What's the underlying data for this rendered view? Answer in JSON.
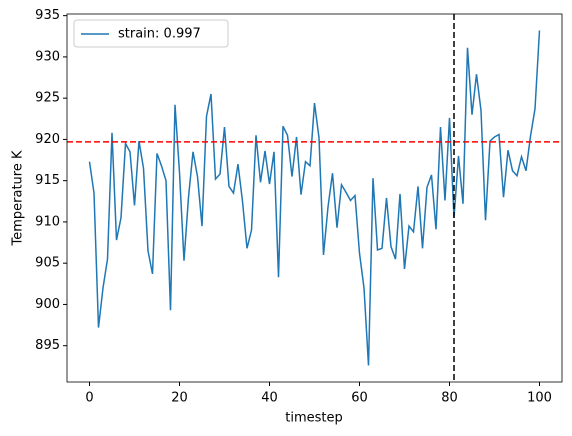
{
  "chart_data": {
    "type": "line",
    "xlabel": "timestep",
    "ylabel": "Temperature K",
    "x": [
      0,
      1,
      2,
      3,
      4,
      5,
      6,
      7,
      8,
      9,
      10,
      11,
      12,
      13,
      14,
      15,
      16,
      17,
      18,
      19,
      20,
      21,
      22,
      23,
      24,
      25,
      26,
      27,
      28,
      29,
      30,
      31,
      32,
      33,
      34,
      35,
      36,
      37,
      38,
      39,
      40,
      41,
      42,
      43,
      44,
      45,
      46,
      47,
      48,
      49,
      50,
      51,
      52,
      53,
      54,
      55,
      56,
      57,
      58,
      59,
      60,
      61,
      62,
      63,
      64,
      65,
      66,
      67,
      68,
      69,
      70,
      71,
      72,
      73,
      74,
      75,
      76,
      77,
      78,
      79,
      80,
      81,
      82,
      83,
      84,
      85,
      86,
      87,
      88,
      89,
      90,
      91,
      92,
      93,
      94,
      95,
      96,
      97,
      98,
      99,
      100
    ],
    "series": [
      {
        "name": "strain: 0.997",
        "color": "#1f77b4",
        "values": [
          917.3,
          913.5,
          897.2,
          902,
          905.5,
          920.8,
          907.8,
          910.5,
          919.5,
          918.5,
          912,
          919.8,
          916.5,
          906.5,
          903.7,
          918.3,
          916.8,
          915,
          899.3,
          924.2,
          916,
          905.3,
          913,
          918.5,
          915.5,
          909.5,
          922.8,
          925.5,
          915.2,
          915.8,
          921.5,
          914.3,
          913.5,
          917,
          912.5,
          906.8,
          909,
          920.5,
          914.8,
          918.6,
          914.6,
          918.5,
          903.3,
          921.6,
          920.5,
          915.5,
          920.3,
          913.3,
          917.3,
          916.8,
          924.4,
          920.2,
          906,
          911.8,
          915.9,
          909.3,
          914.5,
          913.6,
          912.6,
          913.2,
          906.2,
          902,
          892.6,
          915.3,
          906.6,
          906.8,
          912.9,
          907,
          905.5,
          913.4,
          904.3,
          909.5,
          908.8,
          914.3,
          906.8,
          914.2,
          915.7,
          909.1,
          921.5,
          912.6,
          922.6,
          910.5,
          918,
          912.2,
          931.1,
          923,
          927.9,
          923.5,
          910.2,
          919.8,
          920.3,
          920.6,
          913,
          918.7,
          916.2,
          915.6,
          917.9,
          916.2,
          920.4,
          923.7,
          933.2
        ]
      }
    ],
    "hline": {
      "value": 919.7,
      "color": "#ff0000"
    },
    "vline": {
      "value": 81,
      "color": "#000000"
    },
    "xlim": [
      -5,
      105
    ],
    "xticks": [
      0,
      20,
      40,
      60,
      80,
      100
    ],
    "ylim": [
      890.6,
      935.2
    ],
    "yticks": [
      895,
      900,
      905,
      910,
      915,
      920,
      925,
      930,
      935
    ],
    "grid": false,
    "legend": "upper left"
  }
}
